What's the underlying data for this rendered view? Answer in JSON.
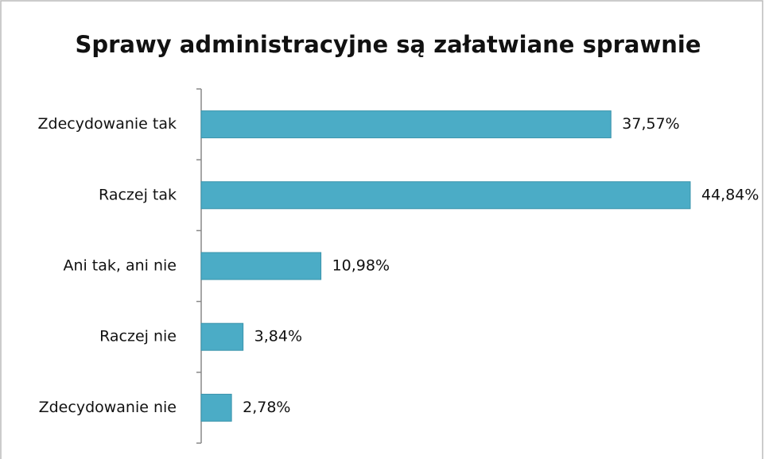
{
  "chart_data": {
    "type": "bar",
    "orientation": "horizontal",
    "title": "Sprawy administracyjne są załatwiane sprawnie",
    "categories": [
      "Zdecydowanie tak",
      "Raczej tak",
      "Ani tak, ani nie",
      "Raczej nie",
      "Zdecydowanie nie"
    ],
    "values": [
      37.57,
      44.84,
      10.98,
      3.84,
      2.78
    ],
    "value_labels": [
      "37,57%",
      "44,84%",
      "10,98%",
      "3,84%",
      "2,78%"
    ],
    "color": "#4bacc6"
  }
}
